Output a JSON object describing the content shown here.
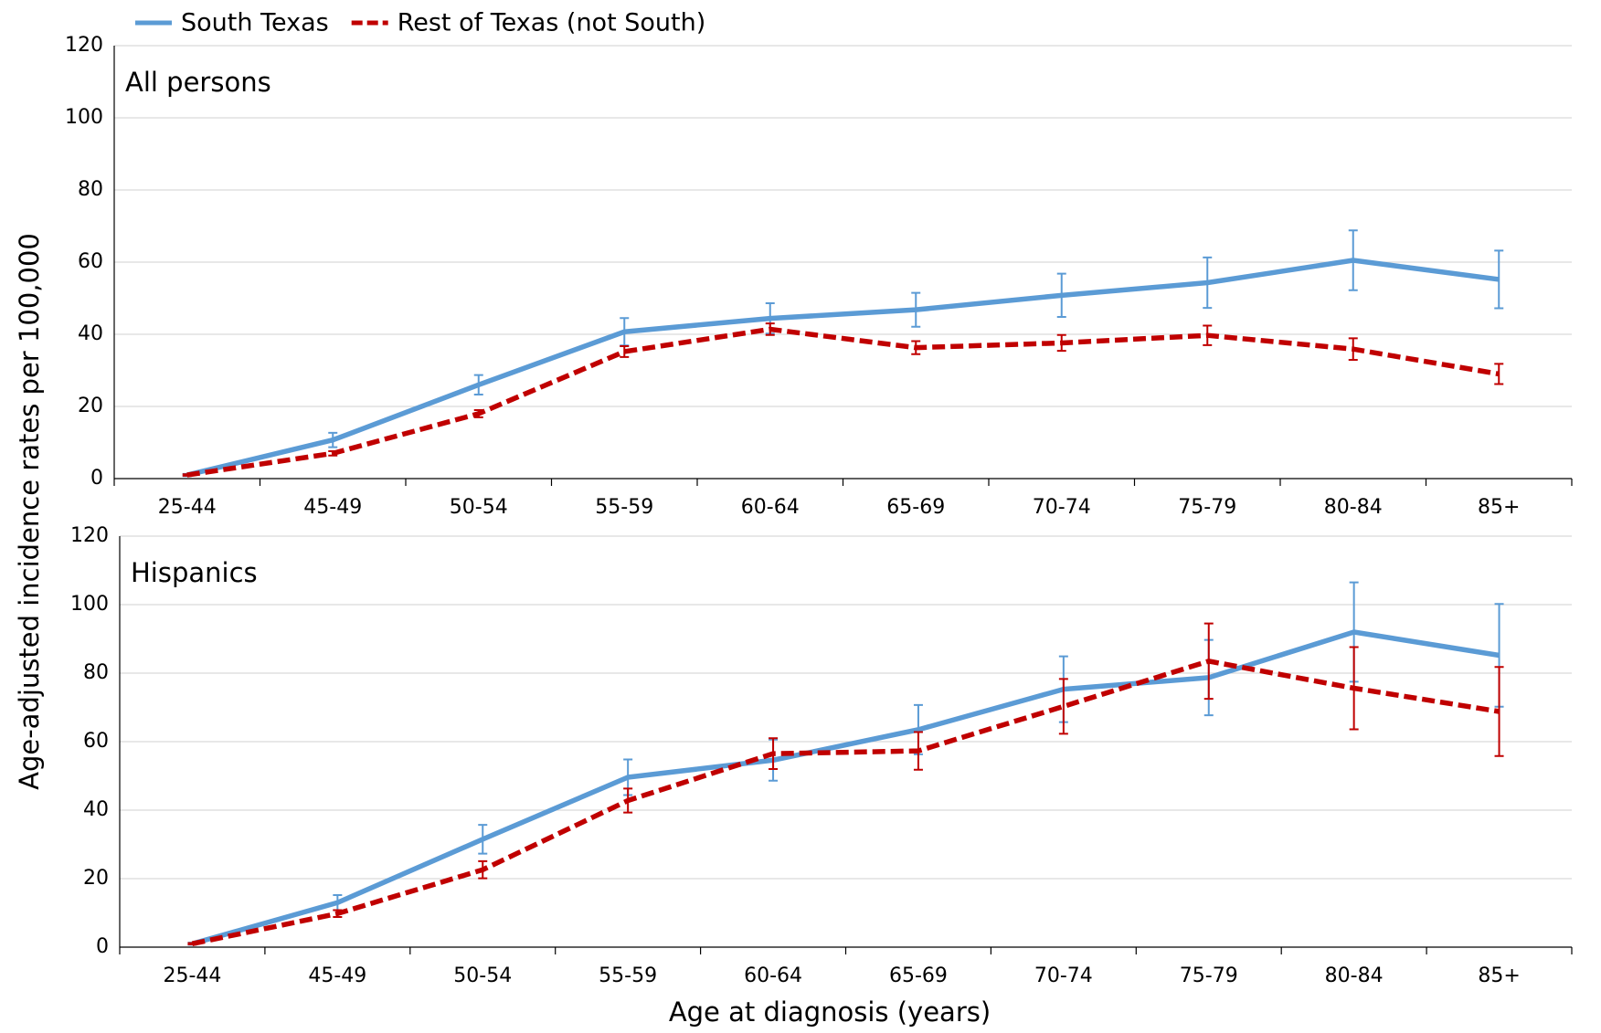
{
  "chart_data": [
    {
      "type": "line",
      "annotation": "All persons",
      "ylabel": "Age-adjusted incidence rates per 100,000",
      "categories": [
        "25-44",
        "45-49",
        "50-54",
        "55-59",
        "60-64",
        "65-69",
        "70-74",
        "75-79",
        "80-84",
        "85+"
      ],
      "ylim": [
        0,
        120
      ],
      "yticks": [
        0,
        20,
        40,
        60,
        80,
        100,
        120
      ],
      "grid": true,
      "series": [
        {
          "name": "South Texas",
          "color": "#5b9bd5",
          "line_style": "solid",
          "values": [
            1,
            10.7,
            26,
            40.7,
            44.4,
            46.8,
            50.8,
            54.3,
            60.5,
            55.2
          ],
          "errors": [
            0.3,
            2,
            2.7,
            3.8,
            4.2,
            4.7,
            6,
            7,
            8.3,
            8
          ]
        },
        {
          "name": "Rest of Texas (not South)",
          "color": "#c00000",
          "line_style": "dashed",
          "values": [
            1,
            7,
            18,
            35.2,
            41.4,
            36.3,
            37.6,
            39.7,
            35.9,
            29
          ],
          "errors": [
            0.2,
            0.6,
            1,
            1.5,
            1.6,
            1.8,
            2.2,
            2.7,
            3,
            2.8
          ]
        }
      ]
    },
    {
      "type": "line",
      "annotation": "Hispanics",
      "xlabel": "Age at diagnosis (years)",
      "categories": [
        "25-44",
        "45-49",
        "50-54",
        "55-59",
        "60-64",
        "65-69",
        "70-74",
        "75-79",
        "80-84",
        "85+"
      ],
      "ylim": [
        0,
        120
      ],
      "yticks": [
        0,
        20,
        40,
        60,
        80,
        100,
        120
      ],
      "grid": true,
      "series": [
        {
          "color": "#5b9bd5",
          "line_style": "solid",
          "values": [
            1,
            13,
            31.5,
            49.6,
            54.6,
            63.5,
            75.3,
            78.7,
            92,
            85.2
          ],
          "errors": [
            0.3,
            2.2,
            4.2,
            5.2,
            6,
            7.2,
            9.6,
            11,
            14.5,
            15
          ]
        },
        {
          "color": "#c00000",
          "line_style": "dashed",
          "values": [
            1,
            9.8,
            22.6,
            42.8,
            56.5,
            57.3,
            70.3,
            83.5,
            75.6,
            68.8
          ],
          "errors": [
            0.2,
            1,
            2.5,
            3.5,
            4.5,
            5.5,
            8,
            11,
            12,
            13
          ]
        }
      ]
    }
  ]
}
